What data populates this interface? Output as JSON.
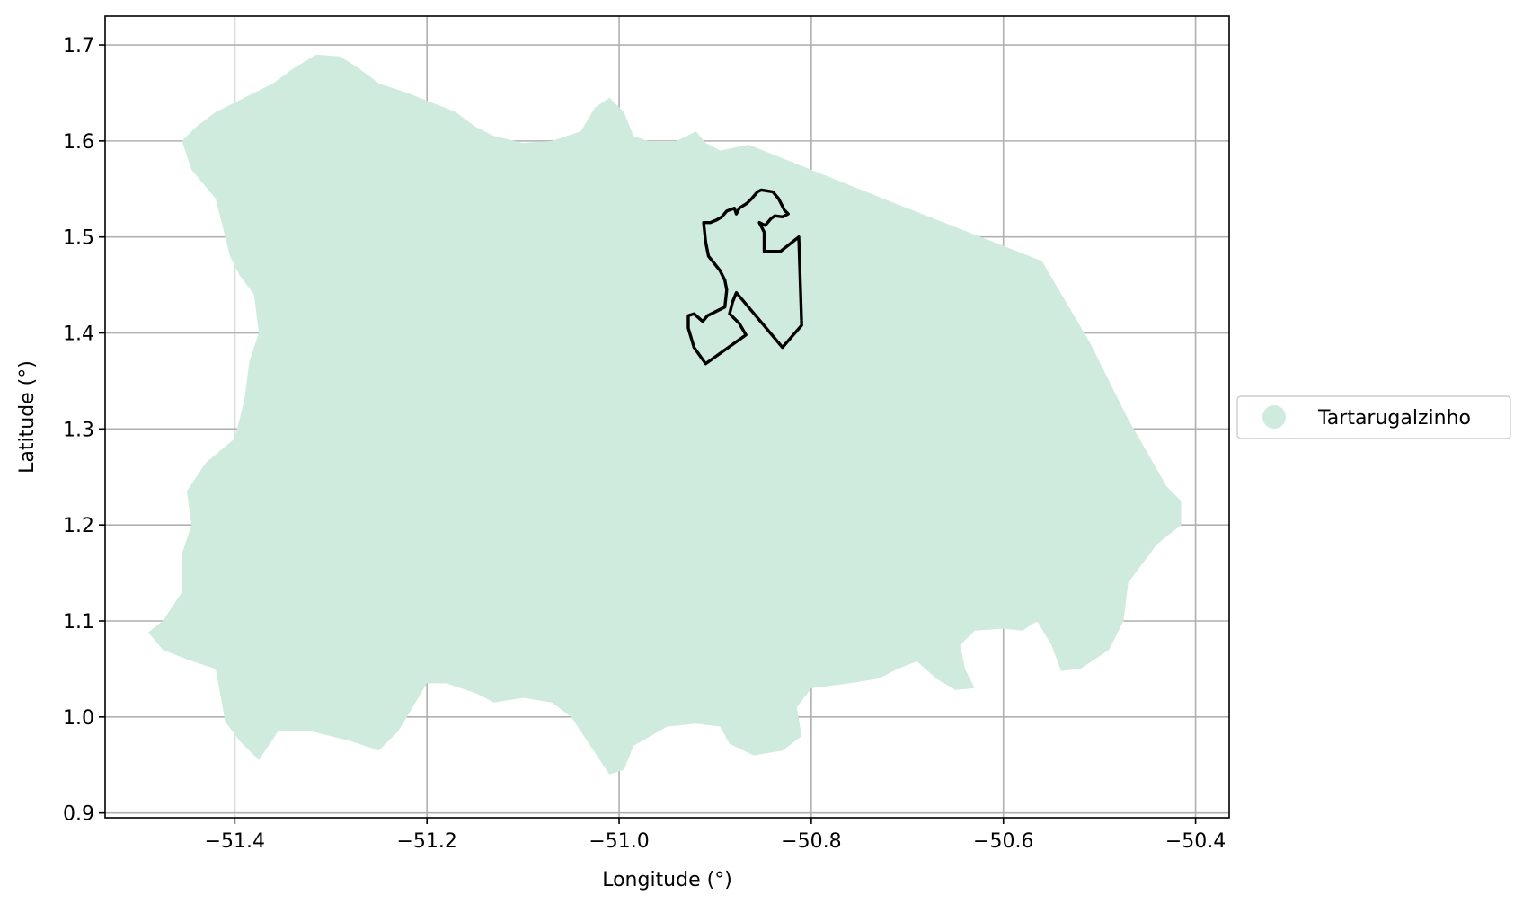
{
  "chart_data": {
    "type": "map",
    "xlabel": "Longitude (°)",
    "ylabel": "Latitude (°)",
    "xlim": [
      -51.535,
      -50.365
    ],
    "ylim": [
      0.895,
      1.73
    ],
    "grid": true,
    "x_ticks": [
      {
        "value": -51.4,
        "label": "−51.4"
      },
      {
        "value": -51.2,
        "label": "−51.2"
      },
      {
        "value": -51.0,
        "label": "−51.0"
      },
      {
        "value": -50.8,
        "label": "−50.8"
      },
      {
        "value": -50.6,
        "label": "−50.6"
      },
      {
        "value": -50.4,
        "label": "−50.4"
      }
    ],
    "y_ticks": [
      {
        "value": 0.9,
        "label": "0.9"
      },
      {
        "value": 1.0,
        "label": "1.0"
      },
      {
        "value": 1.1,
        "label": "1.1"
      },
      {
        "value": 1.2,
        "label": "1.2"
      },
      {
        "value": 1.3,
        "label": "1.3"
      },
      {
        "value": 1.4,
        "label": "1.4"
      },
      {
        "value": 1.5,
        "label": "1.5"
      },
      {
        "value": 1.6,
        "label": "1.6"
      },
      {
        "value": 1.7,
        "label": "1.7"
      }
    ],
    "legend": {
      "placement": "center-right, outside plot",
      "entries": [
        {
          "label": "Tartarugalzinho",
          "color": "#cfebde"
        }
      ]
    },
    "region": {
      "name": "Tartarugalzinho",
      "fill": "#cfebde",
      "boundary": [
        [
          -51.455,
          1.6
        ],
        [
          -51.44,
          1.615
        ],
        [
          -51.42,
          1.63
        ],
        [
          -51.39,
          1.645
        ],
        [
          -51.36,
          1.66
        ],
        [
          -51.34,
          1.675
        ],
        [
          -51.315,
          1.69
        ],
        [
          -51.29,
          1.688
        ],
        [
          -51.27,
          1.675
        ],
        [
          -51.25,
          1.66
        ],
        [
          -51.22,
          1.65
        ],
        [
          -51.195,
          1.64
        ],
        [
          -51.17,
          1.63
        ],
        [
          -51.15,
          1.615
        ],
        [
          -51.13,
          1.605
        ],
        [
          -51.1,
          1.598
        ],
        [
          -51.07,
          1.6
        ],
        [
          -51.04,
          1.61
        ],
        [
          -51.025,
          1.635
        ],
        [
          -51.01,
          1.645
        ],
        [
          -50.995,
          1.63
        ],
        [
          -50.985,
          1.605
        ],
        [
          -50.97,
          1.6
        ],
        [
          -50.94,
          1.6
        ],
        [
          -50.92,
          1.61
        ],
        [
          -50.91,
          1.598
        ],
        [
          -50.895,
          1.59
        ],
        [
          -50.865,
          1.596
        ],
        [
          -50.7,
          1.53
        ],
        [
          -50.56,
          1.475
        ],
        [
          -50.51,
          1.39
        ],
        [
          -50.47,
          1.31
        ],
        [
          -50.43,
          1.24
        ],
        [
          -50.415,
          1.225
        ],
        [
          -50.415,
          1.2
        ],
        [
          -50.44,
          1.18
        ],
        [
          -50.47,
          1.14
        ],
        [
          -50.475,
          1.1
        ],
        [
          -50.49,
          1.07
        ],
        [
          -50.52,
          1.05
        ],
        [
          -50.54,
          1.048
        ],
        [
          -50.55,
          1.075
        ],
        [
          -50.565,
          1.1
        ],
        [
          -50.58,
          1.09
        ],
        [
          -50.6,
          1.092
        ],
        [
          -50.63,
          1.09
        ],
        [
          -50.645,
          1.075
        ],
        [
          -50.64,
          1.05
        ],
        [
          -50.63,
          1.03
        ],
        [
          -50.65,
          1.028
        ],
        [
          -50.67,
          1.04
        ],
        [
          -50.69,
          1.058
        ],
        [
          -50.71,
          1.05
        ],
        [
          -50.73,
          1.04
        ],
        [
          -50.76,
          1.035
        ],
        [
          -50.8,
          1.03
        ],
        [
          -50.815,
          1.01
        ],
        [
          -50.81,
          0.98
        ],
        [
          -50.83,
          0.965
        ],
        [
          -50.86,
          0.96
        ],
        [
          -50.885,
          0.972
        ],
        [
          -50.895,
          0.99
        ],
        [
          -50.92,
          0.993
        ],
        [
          -50.95,
          0.99
        ],
        [
          -50.985,
          0.97
        ],
        [
          -50.995,
          0.945
        ],
        [
          -51.01,
          0.94
        ],
        [
          -51.03,
          0.97
        ],
        [
          -51.05,
          1.0
        ],
        [
          -51.07,
          1.015
        ],
        [
          -51.1,
          1.02
        ],
        [
          -51.13,
          1.015
        ],
        [
          -51.15,
          1.025
        ],
        [
          -51.18,
          1.035
        ],
        [
          -51.2,
          1.035
        ],
        [
          -51.215,
          1.01
        ],
        [
          -51.23,
          0.985
        ],
        [
          -51.25,
          0.965
        ],
        [
          -51.28,
          0.975
        ],
        [
          -51.3,
          0.98
        ],
        [
          -51.32,
          0.985
        ],
        [
          -51.355,
          0.985
        ],
        [
          -51.375,
          0.955
        ],
        [
          -51.395,
          0.975
        ],
        [
          -51.41,
          0.995
        ],
        [
          -51.42,
          1.05
        ],
        [
          -51.45,
          1.06
        ],
        [
          -51.475,
          1.07
        ],
        [
          -51.49,
          1.088
        ],
        [
          -51.475,
          1.1
        ],
        [
          -51.455,
          1.13
        ],
        [
          -51.455,
          1.17
        ],
        [
          -51.445,
          1.2
        ],
        [
          -51.45,
          1.235
        ],
        [
          -51.43,
          1.265
        ],
        [
          -51.4,
          1.29
        ],
        [
          -51.39,
          1.33
        ],
        [
          -51.385,
          1.37
        ],
        [
          -51.375,
          1.4
        ],
        [
          -51.38,
          1.44
        ],
        [
          -51.395,
          1.46
        ],
        [
          -51.405,
          1.48
        ],
        [
          -51.41,
          1.5
        ],
        [
          -51.42,
          1.54
        ],
        [
          -51.445,
          1.57
        ],
        [
          -51.455,
          1.6
        ]
      ]
    },
    "outline": {
      "stroke": "#000000",
      "points": [
        [
          -50.912,
          1.515
        ],
        [
          -50.905,
          1.515
        ],
        [
          -50.898,
          1.518
        ],
        [
          -50.893,
          1.521
        ],
        [
          -50.888,
          1.527
        ],
        [
          -50.88,
          1.53
        ],
        [
          -50.878,
          1.524
        ],
        [
          -50.875,
          1.53
        ],
        [
          -50.867,
          1.535
        ],
        [
          -50.862,
          1.54
        ],
        [
          -50.856,
          1.547
        ],
        [
          -50.852,
          1.549
        ],
        [
          -50.846,
          1.548
        ],
        [
          -50.84,
          1.547
        ],
        [
          -50.834,
          1.54
        ],
        [
          -50.828,
          1.528
        ],
        [
          -50.824,
          1.524
        ],
        [
          -50.83,
          1.521
        ],
        [
          -50.838,
          1.522
        ],
        [
          -50.842,
          1.519
        ],
        [
          -50.848,
          1.512
        ],
        [
          -50.854,
          1.515
        ],
        [
          -50.849,
          1.505
        ],
        [
          -50.849,
          1.485
        ],
        [
          -50.832,
          1.485
        ],
        [
          -50.813,
          1.5
        ],
        [
          -50.81,
          1.408
        ],
        [
          -50.83,
          1.385
        ],
        [
          -50.878,
          1.442
        ],
        [
          -50.882,
          1.432
        ],
        [
          -50.885,
          1.42
        ],
        [
          -50.875,
          1.41
        ],
        [
          -50.868,
          1.398
        ],
        [
          -50.91,
          1.368
        ],
        [
          -50.922,
          1.385
        ],
        [
          -50.928,
          1.405
        ],
        [
          -50.928,
          1.418
        ],
        [
          -50.922,
          1.42
        ],
        [
          -50.913,
          1.412
        ],
        [
          -50.908,
          1.418
        ],
        [
          -50.89,
          1.427
        ],
        [
          -50.888,
          1.445
        ],
        [
          -50.89,
          1.455
        ],
        [
          -50.895,
          1.465
        ],
        [
          -50.903,
          1.475
        ],
        [
          -50.907,
          1.48
        ],
        [
          -50.91,
          1.495
        ],
        [
          -50.912,
          1.515
        ]
      ]
    }
  }
}
